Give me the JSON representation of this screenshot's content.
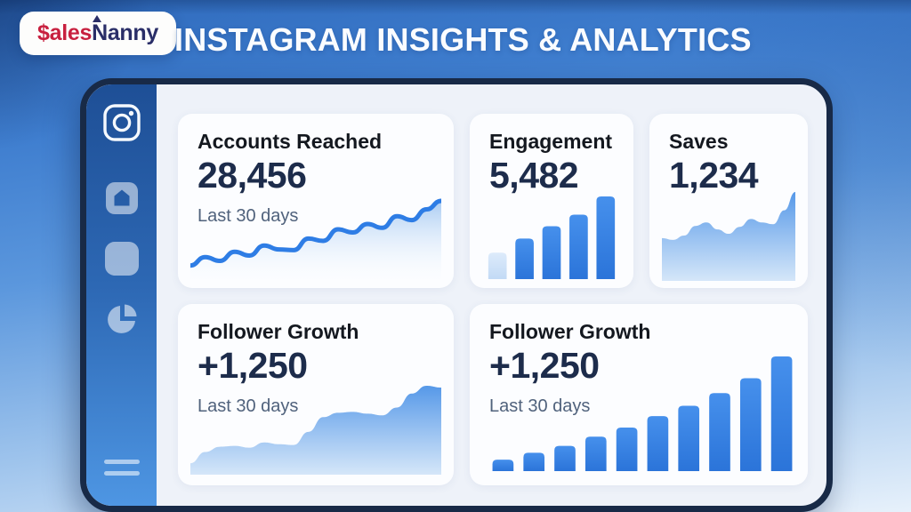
{
  "header": {
    "logo": {
      "part1": "$ales",
      "part2_n": "N",
      "part2_rest": "anny"
    },
    "title": "INSTAGRAM INSIGHTS & ANALYTICS"
  },
  "sidebar": {
    "icons": [
      "instagram-icon",
      "home-icon",
      "posts-icon",
      "pie-chart-icon",
      "menu-icon"
    ]
  },
  "cards": {
    "accounts_reached": {
      "title": "Accounts Reached",
      "value": "28,456",
      "subtitle": "Last 30 days"
    },
    "engagement": {
      "title": "Engagement",
      "value": "5,482"
    },
    "saves": {
      "title": "Saves",
      "value": "1,234"
    },
    "follower_growth_area": {
      "title": "Follower Growth",
      "value": "+1,250",
      "subtitle": "Last 30 days"
    },
    "follower_growth_bar": {
      "title": "Follower Growth",
      "value": "+1,250",
      "subtitle": "Last 30 days"
    }
  },
  "colors": {
    "accent_line_blue": "#2e7de5",
    "bar_blue": "#3182e4",
    "pale_bar": "#c9def6",
    "panel_border_navy": "#182a47",
    "sidebar_gradient_top": "#1e4f96",
    "sidebar_gradient_bottom": "#4e96e3",
    "panel_bg": "#eef2f9",
    "card_bg": "#fcfdff",
    "title_text": "#14181f",
    "value_text": "#1d2c4b",
    "subtitle_text": "#50627c",
    "logo_red": "#c8203f",
    "logo_navy": "#2a2e68",
    "header_title_white": "#fafcff"
  },
  "chart_data": [
    {
      "id": "accounts-reached-trend",
      "type": "line",
      "title": "Accounts Reached",
      "period": "Last 30 days",
      "current_value": 28456,
      "values_unit": "relative height, % of chart max (estimated from pixels; no axes shown)",
      "values": [
        13,
        24,
        19,
        31,
        26,
        39,
        34,
        33,
        48,
        45,
        60,
        56,
        67,
        62,
        77,
        72,
        86,
        97
      ],
      "line_color": "#2e7de5",
      "fill": "blue fade gradient under line",
      "grid": false,
      "axes_hidden": true,
      "legend": "none"
    },
    {
      "id": "engagement-bars",
      "type": "bar",
      "title": "Engagement",
      "current_value": 5482,
      "values_unit": "relative height, % of tallest bar (estimated from pixels; no axes shown)",
      "values": [
        32,
        49,
        64,
        78,
        100
      ],
      "bar_styles": [
        "pale",
        "solid",
        "solid",
        "solid",
        "solid"
      ],
      "bar_color": "#3182e4",
      "pale_bar_color": "#c9def6",
      "grid": false,
      "axes_hidden": true,
      "legend": "none"
    },
    {
      "id": "saves-area",
      "type": "area",
      "title": "Saves",
      "current_value": 1234,
      "values_unit": "relative height, % of chart max (estimated from pixels; no axes shown)",
      "values": [
        47,
        45,
        50,
        61,
        65,
        57,
        52,
        60,
        69,
        65,
        63,
        79,
        100
      ],
      "fill": "blue vertical gradient",
      "grid": false,
      "axes_hidden": true,
      "legend": "none"
    },
    {
      "id": "follower-growth-area",
      "type": "area",
      "title": "Follower Growth",
      "period": "Last 30 days",
      "current_value": "+1,250",
      "values_unit": "relative height, % of chart max (estimated from pixels; no axes shown)",
      "values": [
        11,
        24,
        30,
        31,
        29,
        35,
        33,
        32,
        47,
        64,
        69,
        70,
        68,
        66,
        75,
        91,
        100,
        98
      ],
      "fill": "blue vertical gradient",
      "grid": false,
      "axes_hidden": true,
      "legend": "none"
    },
    {
      "id": "follower-growth-bars",
      "type": "bar",
      "title": "Follower Growth",
      "period": "Last 30 days",
      "current_value": "+1,250",
      "values_unit": "relative height, % of tallest bar (estimated from pixels; no axes shown)",
      "values": [
        10,
        16,
        22,
        30,
        38,
        48,
        57,
        68,
        81,
        100
      ],
      "bar_styles": [
        "solid",
        "solid",
        "solid",
        "solid",
        "solid",
        "solid",
        "solid",
        "solid",
        "solid",
        "solid"
      ],
      "bar_color": "#3182e4",
      "grid": false,
      "axes_hidden": true,
      "legend": "none"
    }
  ]
}
